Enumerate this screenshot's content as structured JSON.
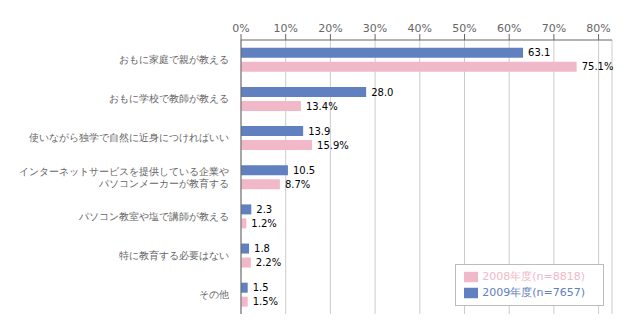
{
  "chart_data": {
    "type": "bar",
    "orientation": "horizontal",
    "categories": [
      "おもに家庭で親が教える",
      "おもに学校で教師が教える",
      "使いながら独学で自然に近身につければいい",
      "インターネットサービスを提供している企業や\nパソコンメーカーが教育する",
      "パソコン教室や塩で講師が教える",
      "特に教育する必要はない",
      "その他"
    ],
    "series": [
      {
        "name": "2009年度(n=7657)",
        "color": "#6080C0",
        "values": [
          63.1,
          28.0,
          13.9,
          10.5,
          2.3,
          1.8,
          1.5
        ],
        "value_labels": [
          "63.1",
          "28.0",
          "13.9",
          "10.5",
          "2.3",
          "1.8",
          "1.5"
        ]
      },
      {
        "name": "2008年度(n=8818)",
        "color": "#F0B8C8",
        "values": [
          75.1,
          13.4,
          15.9,
          8.7,
          1.2,
          2.2,
          1.5
        ],
        "value_labels": [
          "75.1%",
          "13.4%",
          "15.9%",
          "8.7%",
          "1.2%",
          "2.2%",
          "1.5%"
        ]
      }
    ],
    "xlim": [
      0,
      83
    ],
    "xticks": [
      {
        "value": 0,
        "label": "0%"
      },
      {
        "value": 10,
        "label": "10%"
      },
      {
        "value": 20,
        "label": "20%"
      },
      {
        "value": 30,
        "label": "30%"
      },
      {
        "value": 40,
        "label": "40%"
      },
      {
        "value": 50,
        "label": "50%"
      },
      {
        "value": 60,
        "label": "60%"
      },
      {
        "value": 70,
        "label": "70%"
      },
      {
        "value": 80,
        "label": "80%"
      }
    ],
    "grid": true,
    "legend": "lower right",
    "data_labels": true
  }
}
